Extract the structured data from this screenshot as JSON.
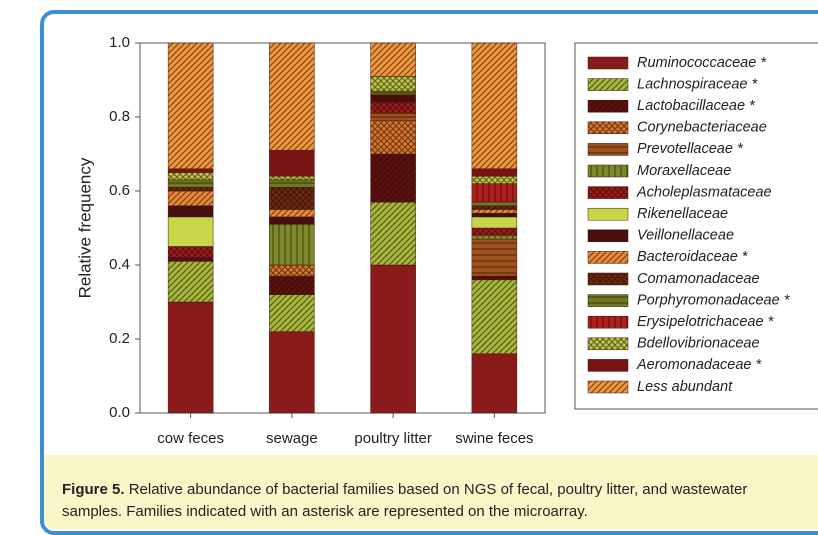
{
  "chart_data": {
    "type": "stacked_bar",
    "y_label": "Relative frequency",
    "categories": [
      "cow feces",
      "sewage",
      "poultry litter",
      "swine feces"
    ],
    "ylim": [
      0,
      1
    ],
    "yticks": [
      {
        "value": 0,
        "label": "0.0"
      },
      0.2,
      0.4,
      0.6,
      0.8,
      {
        "value": 1,
        "label": "1.0"
      }
    ],
    "series": [
      {
        "name": "Ruminococcaceae *",
        "color": "#8b1a1a",
        "hatch": "none",
        "values": [
          0.3,
          0.22,
          0.4,
          0.16
        ]
      },
      {
        "name": "Lachnospiraceae *",
        "color": "#a4b83c",
        "hatch": "diagonal",
        "values": [
          0.11,
          0.1,
          0.17,
          0.2
        ]
      },
      {
        "name": "Lactobacillaceae *",
        "color": "#5a1010",
        "hatch": "diagonal",
        "values": [
          0.01,
          0.05,
          0.13,
          0.01
        ]
      },
      {
        "name": "Corynebacteriaceae",
        "color": "#d8772e",
        "hatch": "cross",
        "values": [
          0.0,
          0.03,
          0.09,
          0.0
        ]
      },
      {
        "name": "Prevotellaceae *",
        "color": "#a0521e",
        "hatch": "horizontal",
        "values": [
          0.0,
          0.0,
          0.02,
          0.1
        ]
      },
      {
        "name": "Moraxellaceae",
        "color": "#7d8a2a",
        "hatch": "vertical",
        "values": [
          0.0,
          0.11,
          0.0,
          0.01
        ]
      },
      {
        "name": "Acholeplasmataceae",
        "color": "#a01c1c",
        "hatch": "cross",
        "values": [
          0.03,
          0.0,
          0.03,
          0.02
        ]
      },
      {
        "name": "Rikenellaceae",
        "color": "#c8d64a",
        "hatch": "none",
        "values": [
          0.08,
          0.0,
          0.0,
          0.03
        ]
      },
      {
        "name": "Veillonellaceae",
        "color": "#4a0e0e",
        "hatch": "none",
        "values": [
          0.03,
          0.02,
          0.02,
          0.01
        ]
      },
      {
        "name": "Bacteroidaceae *",
        "color": "#e8893a",
        "hatch": "diagonal",
        "values": [
          0.04,
          0.02,
          0.0,
          0.01
        ]
      },
      {
        "name": "Comamonadaceae",
        "color": "#6e2a10",
        "hatch": "cross",
        "values": [
          0.01,
          0.06,
          0.0,
          0.01
        ]
      },
      {
        "name": "Porphyromonadaceae *",
        "color": "#6e7a22",
        "hatch": "horizontal",
        "values": [
          0.02,
          0.02,
          0.01,
          0.01
        ]
      },
      {
        "name": "Erysipelotrichaceae *",
        "color": "#b01e1e",
        "hatch": "vertical",
        "values": [
          0.0,
          0.0,
          0.0,
          0.05
        ]
      },
      {
        "name": "Bdellovibrionaceae",
        "color": "#b8cc48",
        "hatch": "cross",
        "values": [
          0.02,
          0.01,
          0.04,
          0.02
        ]
      },
      {
        "name": "Aeromonadaceae *",
        "color": "#7a1414",
        "hatch": "none",
        "values": [
          0.01,
          0.07,
          0.0,
          0.02
        ]
      },
      {
        "name": "Less abundant",
        "color": "#f0963e",
        "hatch": "diagonal",
        "values": [
          0.34,
          0.29,
          0.09,
          0.34
        ]
      }
    ]
  },
  "caption": {
    "label": "Figure 5.",
    "text": "Relative abundance of bacterial families based on NGS of fecal, poultry litter, and wastewater samples. Families indicated with an asterisk are represented on the microarray."
  }
}
